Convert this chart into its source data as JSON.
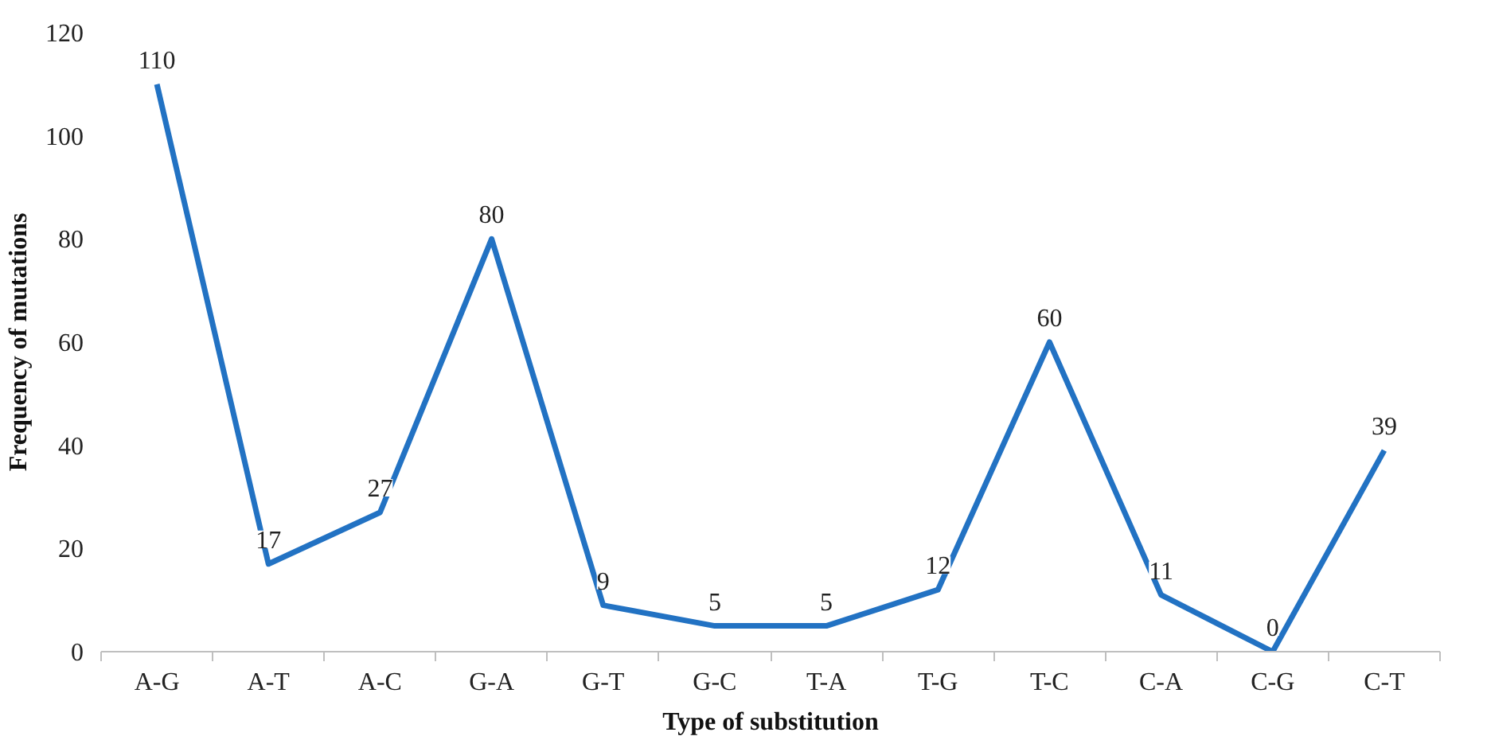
{
  "chart_data": {
    "type": "line",
    "xlabel": "Type of substitution",
    "ylabel": "Frequency of mutations",
    "categories": [
      "A-G",
      "A-T",
      "A-C",
      "G-A",
      "G-T",
      "G-C",
      "T-A",
      "T-G",
      "T-C",
      "C-A",
      "C-G",
      "C-T"
    ],
    "series": [
      {
        "color": "#2272c3",
        "values": [
          110,
          17,
          27,
          80,
          9,
          5,
          5,
          12,
          60,
          11,
          0,
          39
        ]
      }
    ],
    "ylim": [
      0,
      120
    ],
    "yticks": [
      0,
      20,
      40,
      60,
      80,
      100,
      120
    ],
    "grid": false,
    "data_labels": true,
    "marker": "none",
    "line_style": "solid"
  }
}
